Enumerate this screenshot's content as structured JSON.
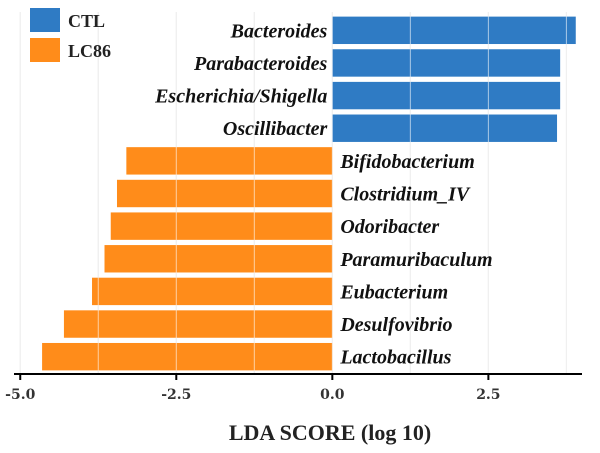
{
  "chart_data": {
    "type": "bar",
    "orientation": "horizontal",
    "xlabel": "LDA SCORE (log 10)",
    "xlim": [
      -5.1,
      4.0
    ],
    "xticks": [
      -5.0,
      -2.5,
      0.0,
      2.5
    ],
    "xtick_labels": [
      "-5.0",
      "-2.5",
      "0.0",
      "2.5"
    ],
    "grid": true,
    "legend_position": "top-left",
    "groups": [
      {
        "name": "CTL",
        "color": "#2f7bc4"
      },
      {
        "name": "LC86",
        "color": "#ff8c1a"
      }
    ],
    "bars": [
      {
        "label": "Bacteroides",
        "group": "CTL",
        "value": 3.9
      },
      {
        "label": "Parabacteroides",
        "group": "CTL",
        "value": 3.65
      },
      {
        "label": "Escherichia/Shigella",
        "group": "CTL",
        "value": 3.65
      },
      {
        "label": "Oscillibacter",
        "group": "CTL",
        "value": 3.6
      },
      {
        "label": "Bifidobacterium",
        "group": "LC86",
        "value": -3.3
      },
      {
        "label": "Clostridium_IV",
        "group": "LC86",
        "value": -3.45
      },
      {
        "label": "Odoribacter",
        "group": "LC86",
        "value": -3.55
      },
      {
        "label": "Paramuribaculum",
        "group": "LC86",
        "value": -3.65
      },
      {
        "label": "Eubacterium",
        "group": "LC86",
        "value": -3.85
      },
      {
        "label": "Desulfovibrio",
        "group": "LC86",
        "value": -4.3
      },
      {
        "label": "Lactobacillus",
        "group": "LC86",
        "value": -4.65
      }
    ]
  }
}
